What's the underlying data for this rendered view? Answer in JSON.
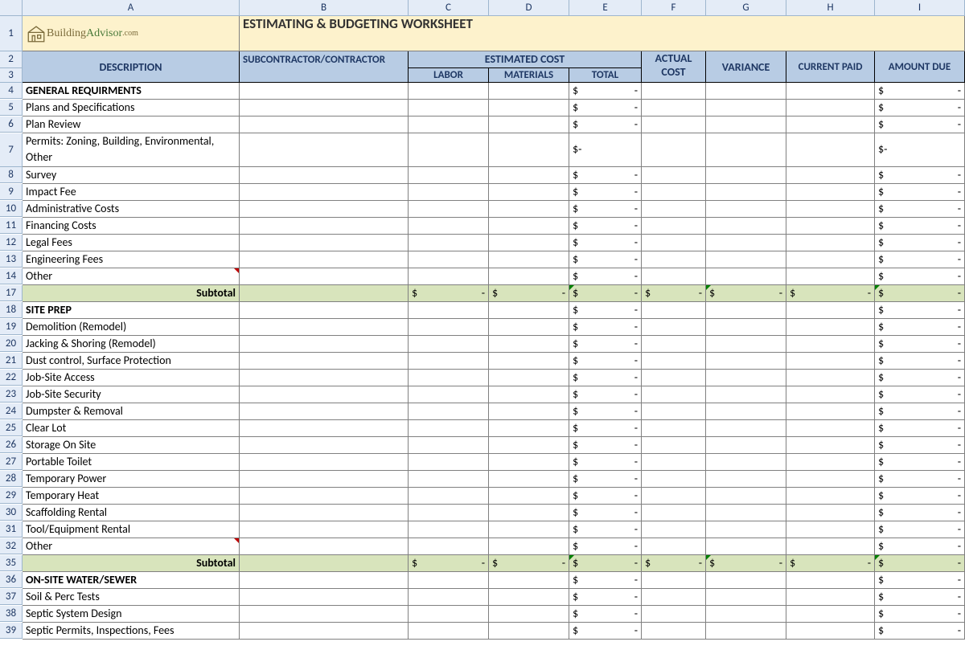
{
  "columns": [
    "A",
    "B",
    "C",
    "D",
    "E",
    "F",
    "G",
    "H",
    "I"
  ],
  "title": "ESTIMATING & BUDGETING WORKSHEET",
  "brand": {
    "name1": "Building",
    "name2": "Advisor",
    "suffix": ".com"
  },
  "headers": {
    "description": "DESCRIPTION",
    "subcontractor": "SUBCONTRACTOR/CONTRACTOR",
    "estimated": "ESTIMATED COST",
    "labor": "LABOR",
    "materials": "MATERIALS",
    "total": "TOTAL",
    "actual": "ACTUAL COST",
    "variance": "VARIANCE",
    "current_paid": "CURRENT PAID",
    "amount_due": "AMOUNT DUE"
  },
  "subtotal_label": "Subtotal",
  "colors": {
    "title_bg": "#fdf2cc",
    "header_bg": "#b8cce4",
    "colhead_bg": "#e4ecf7",
    "subtotal_bg": "#d8e4bc",
    "grid_border": "#808080",
    "colhead_border": "#9eb6ce"
  },
  "rows": [
    {
      "n": 4,
      "desc": "GENERAL REQUIRMENTS",
      "bold": true,
      "moneyE": true,
      "moneyI": true
    },
    {
      "n": 5,
      "desc": "Plans and Specifications",
      "moneyE": true,
      "moneyI": true
    },
    {
      "n": 6,
      "desc": "Plan Review",
      "moneyE": true,
      "moneyI": true
    },
    {
      "n": 7,
      "desc": "Permits: Zoning, Building, Environmental, Other",
      "tall": true,
      "moneyE": true,
      "moneyI": true
    },
    {
      "n": 8,
      "desc": "Survey",
      "moneyE": true,
      "moneyI": true
    },
    {
      "n": 9,
      "desc": "Impact Fee",
      "moneyE": true,
      "moneyI": true
    },
    {
      "n": 10,
      "desc": "Administrative Costs",
      "moneyE": true,
      "moneyI": true
    },
    {
      "n": 11,
      "desc": "Financing Costs",
      "moneyE": true,
      "moneyI": true
    },
    {
      "n": 12,
      "desc": "Legal Fees",
      "moneyE": true,
      "moneyI": true
    },
    {
      "n": 13,
      "desc": "Engineering Fees",
      "moneyE": true,
      "moneyI": true
    },
    {
      "n": 14,
      "desc": "Other",
      "moneyE": true,
      "moneyI": true,
      "redflag": true
    },
    {
      "n": 17,
      "desc": "Subtotal",
      "subtotal": true,
      "bold": true,
      "right": true,
      "moneyC": true,
      "moneyD": true,
      "moneyE": true,
      "moneyF": true,
      "moneyG": true,
      "moneyH": true,
      "moneyI": true,
      "green": true
    },
    {
      "n": 18,
      "desc": "SITE PREP",
      "bold": true,
      "moneyE": true,
      "moneyI": true
    },
    {
      "n": 19,
      "desc": "Demolition (Remodel)",
      "moneyE": true,
      "moneyI": true
    },
    {
      "n": 20,
      "desc": "Jacking & Shoring (Remodel)",
      "moneyE": true,
      "moneyI": true
    },
    {
      "n": 21,
      "desc": "Dust control, Surface Protection",
      "moneyE": true,
      "moneyI": true
    },
    {
      "n": 22,
      "desc": "Job-Site Access",
      "moneyE": true,
      "moneyI": true
    },
    {
      "n": 23,
      "desc": "Job-Site Security",
      "moneyE": true,
      "moneyI": true
    },
    {
      "n": 24,
      "desc": "Dumpster & Removal",
      "moneyE": true,
      "moneyI": true
    },
    {
      "n": 25,
      "desc": "Clear Lot",
      "moneyE": true,
      "moneyI": true
    },
    {
      "n": 26,
      "desc": "Storage On Site",
      "moneyE": true,
      "moneyI": true
    },
    {
      "n": 27,
      "desc": "Portable Toilet",
      "moneyE": true,
      "moneyI": true
    },
    {
      "n": 28,
      "desc": "Temporary Power",
      "moneyE": true,
      "moneyI": true
    },
    {
      "n": 29,
      "desc": "Temporary Heat",
      "moneyE": true,
      "moneyI": true
    },
    {
      "n": 30,
      "desc": "Scaffolding Rental",
      "moneyE": true,
      "moneyI": true
    },
    {
      "n": 31,
      "desc": "Tool/Equipment Rental",
      "moneyE": true,
      "moneyI": true
    },
    {
      "n": 32,
      "desc": "Other",
      "moneyE": true,
      "moneyI": true,
      "redflag": true
    },
    {
      "n": 35,
      "desc": "Subtotal",
      "subtotal": true,
      "bold": true,
      "right": true,
      "moneyC": true,
      "moneyD": true,
      "moneyE": true,
      "moneyF": true,
      "moneyG": true,
      "moneyH": true,
      "moneyI": true,
      "green": true
    },
    {
      "n": 36,
      "desc": "ON-SITE WATER/SEWER",
      "bold": true,
      "moneyE": true,
      "moneyI": true
    },
    {
      "n": 37,
      "desc": "Soil & Perc Tests",
      "moneyE": true,
      "moneyI": true
    },
    {
      "n": 38,
      "desc": "Septic System Design",
      "moneyE": true,
      "moneyI": true
    },
    {
      "n": 39,
      "desc": "Septic Permits, Inspections, Fees",
      "moneyE": true,
      "moneyI": true
    }
  ],
  "currency": "$",
  "dash": "-"
}
